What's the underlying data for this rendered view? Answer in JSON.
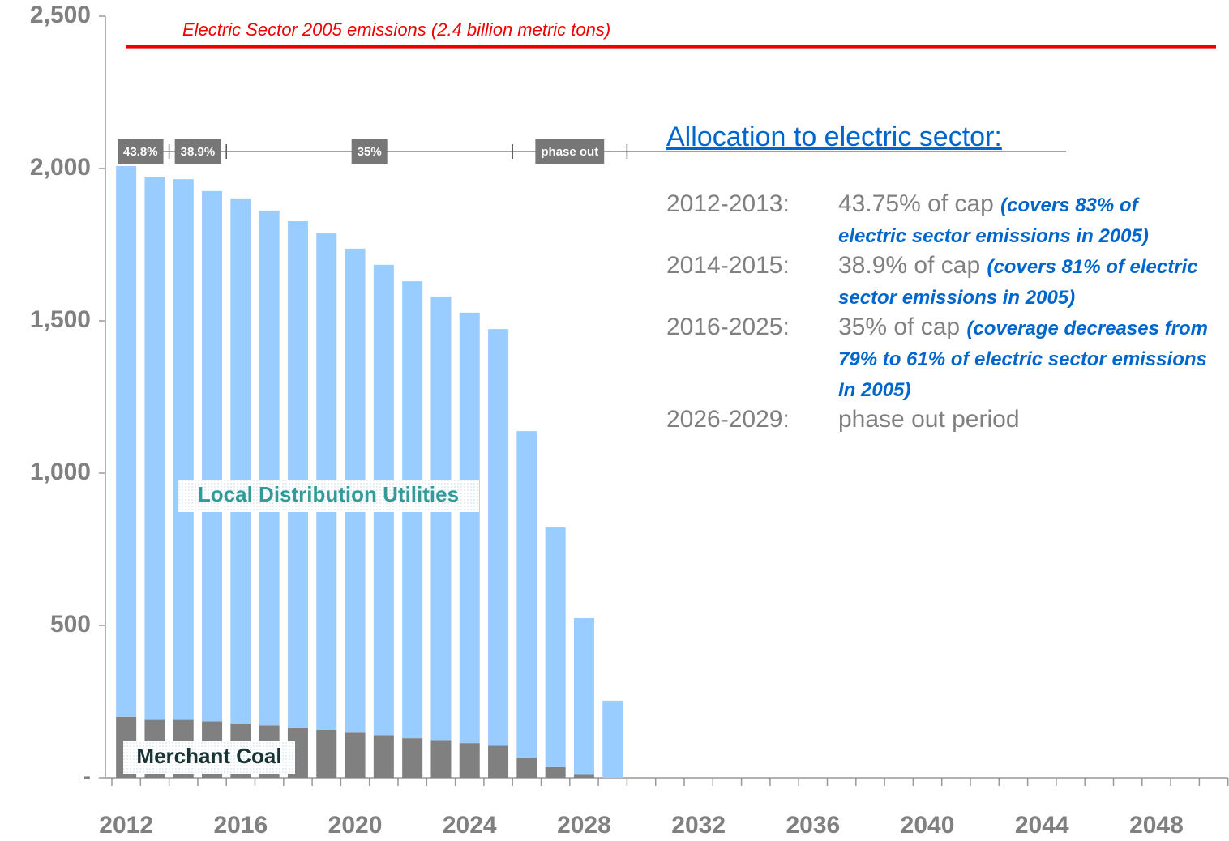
{
  "chart_data": {
    "type": "stacked_bar",
    "categories": [
      "2012",
      null,
      null,
      null,
      "2016",
      null,
      null,
      null,
      "2020",
      null,
      null,
      null,
      "2024",
      null,
      null,
      null,
      "2028",
      null,
      null,
      null,
      "2032",
      null,
      null,
      null,
      "2036",
      null,
      null,
      null,
      "2040",
      null,
      null,
      null,
      "2044",
      null,
      null,
      null,
      "2048",
      null,
      null
    ],
    "series": [
      {
        "name": "Merchant Coal",
        "color": "#808080",
        "values": [
          200,
          190,
          190,
          185,
          178,
          172,
          165,
          157,
          148,
          140,
          130,
          124,
          114,
          105,
          65,
          35,
          12,
          0,
          null,
          null,
          null,
          null,
          null,
          null,
          null,
          null,
          null,
          null,
          null,
          null,
          null,
          null,
          null,
          null,
          null,
          null,
          null,
          null,
          null
        ]
      },
      {
        "name": "Local Distribution Utilities",
        "color": "#99ccff",
        "values": [
          1808,
          1781,
          1775,
          1741,
          1724,
          1690,
          1662,
          1630,
          1589,
          1544,
          1500,
          1456,
          1413,
          1368,
          1073,
          787,
          512,
          253,
          null,
          null,
          null,
          null,
          null,
          null,
          null,
          null,
          null,
          null,
          null,
          null,
          null,
          null,
          null,
          null,
          null,
          null,
          null,
          null,
          null
        ]
      }
    ],
    "ylim": [
      0,
      2500
    ],
    "yticks": [
      {
        "value": 0,
        "label": "-"
      },
      500,
      {
        "value": 1000,
        "label": "1,000"
      },
      {
        "value": 1500,
        "label": "1,500"
      },
      {
        "value": 2000,
        "label": "2,000"
      },
      {
        "value": 2500,
        "label": "2,500"
      }
    ],
    "reference_line": {
      "value": 2400,
      "label": "Electric Sector 2005 emissions (2.4 billion metric tons)",
      "color": "#ee0000"
    },
    "period_bands": [
      {
        "label": "43.8%",
        "start": 2012,
        "end": 2013
      },
      {
        "label": "38.9%",
        "start": 2014,
        "end": 2015
      },
      {
        "label": "35%",
        "start": 2016,
        "end": 2025
      },
      {
        "label": "phase out",
        "start": 2026,
        "end": 2029
      }
    ],
    "annotation_block": {
      "heading": "Allocation to electric sector:",
      "items": [
        {
          "period": "2012-2013:",
          "text": "43.75% of cap",
          "note": "(covers 83% of electric sector emissions in 2005)"
        },
        {
          "period": "2014-2015:",
          "text": "38.9% of cap",
          "note": "(covers 81% of electric sector emissions in 2005)"
        },
        {
          "period": "2016-2025:",
          "text": "35% of cap",
          "note": "(coverage decreases from 79% to 61% of electric sector emissions In 2005)"
        },
        {
          "period": "2026-2029:",
          "text": "phase out period"
        }
      ]
    }
  }
}
